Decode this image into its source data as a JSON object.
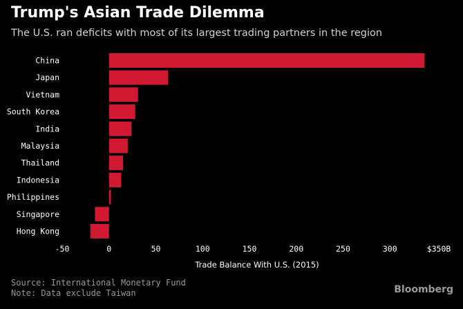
{
  "title": "Trump's Asian Trade Dilemma",
  "subtitle": "The U.S. ran deficits with most of its largest trading partners in the region",
  "source": "Source: International Monetary Fund",
  "note": "Note: Data exclude Taiwan",
  "logo": "Bloomberg",
  "colors": {
    "bar": "#d11a31",
    "background": "#000000"
  },
  "chart_data": {
    "type": "bar",
    "orientation": "horizontal",
    "categories": [
      "China",
      "Japan",
      "Vietnam",
      "South Korea",
      "India",
      "Malaysia",
      "Thailand",
      "Indonesia",
      "Philippines",
      "Singapore",
      "Hong Kong"
    ],
    "values": [
      337,
      63,
      31,
      28,
      24,
      20,
      15,
      13,
      2,
      -15,
      -20
    ],
    "xlabel": "Trade Balance With U.S. (2015)",
    "xlim": [
      -50,
      350
    ],
    "xticks": [
      -50,
      0,
      50,
      100,
      150,
      200,
      250,
      300,
      350
    ],
    "xtick_labels": [
      "-50",
      "0",
      "50",
      "100",
      "150",
      "200",
      "250",
      "300",
      "$350B"
    ],
    "grid": false
  }
}
